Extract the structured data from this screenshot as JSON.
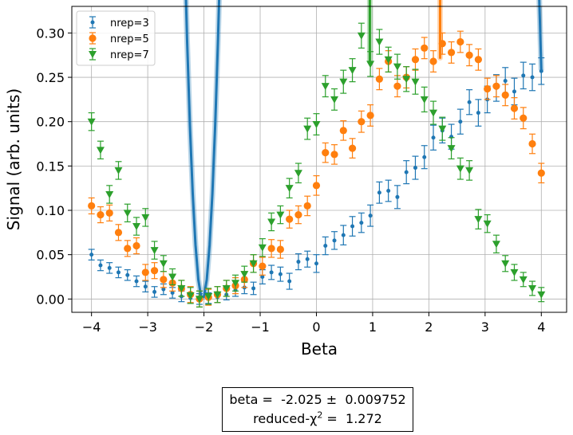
{
  "chart_data": {
    "type": "scatter",
    "xlabel": "Beta",
    "ylabel": "Signal (arb. units)",
    "xlim": [
      -4.35,
      4.45
    ],
    "ylim": [
      -0.015,
      0.33
    ],
    "xticks": [
      -4,
      -3,
      -2,
      -1,
      0,
      1,
      2,
      3,
      4
    ],
    "xtick_labels": [
      "−4",
      "−3",
      "−2",
      "−1",
      "0",
      "1",
      "2",
      "3",
      "4"
    ],
    "yticks": [
      0.0,
      0.05,
      0.1,
      0.15,
      0.2,
      0.25,
      0.3
    ],
    "ytick_labels": [
      "0.00",
      "0.05",
      "0.10",
      "0.15",
      "0.20",
      "0.25",
      "0.30"
    ],
    "grid": true,
    "legend_position": "top-left",
    "fit": {
      "beta": -2.025,
      "beta_err": 0.009752,
      "reduced_chi2": 1.272,
      "line1_prefix": "beta =  ",
      "line1_value": "-2.025",
      "line1_pm": " ±  ",
      "line1_err": "0.009752",
      "line2_prefix": "reduced-χ",
      "line2_sup": "2",
      "line2_suffix": " =  ",
      "line2_value": "1.272"
    },
    "series": [
      {
        "name": "nrep=3",
        "color": "#1f77b4",
        "marker": "dot",
        "x": [
          -4.0,
          -3.84,
          -3.68,
          -3.52,
          -3.36,
          -3.2,
          -3.04,
          -2.88,
          -2.72,
          -2.56,
          -2.4,
          -2.24,
          -2.08,
          -1.92,
          -1.76,
          -1.6,
          -1.44,
          -1.28,
          -1.12,
          -0.96,
          -0.8,
          -0.64,
          -0.48,
          -0.32,
          -0.16,
          0.0,
          0.16,
          0.32,
          0.48,
          0.64,
          0.8,
          0.96,
          1.12,
          1.28,
          1.44,
          1.6,
          1.76,
          1.92,
          2.08,
          2.24,
          2.4,
          2.56,
          2.72,
          2.88,
          3.04,
          3.2,
          3.36,
          3.52,
          3.68,
          3.84,
          4.0
        ],
        "y": [
          0.05,
          0.038,
          0.035,
          0.03,
          0.027,
          0.02,
          0.014,
          0.008,
          0.011,
          0.007,
          0.003,
          0.001,
          0.0,
          0.001,
          0.002,
          0.005,
          0.01,
          0.013,
          0.012,
          0.025,
          0.03,
          0.028,
          0.02,
          0.042,
          0.045,
          0.04,
          0.06,
          0.066,
          0.072,
          0.082,
          0.086,
          0.094,
          0.12,
          0.122,
          0.115,
          0.143,
          0.148,
          0.16,
          0.182,
          0.19,
          0.183,
          0.2,
          0.222,
          0.21,
          0.225,
          0.238,
          0.246,
          0.234,
          0.252,
          0.25,
          0.257
        ],
        "err": [
          0.006,
          0.006,
          0.006,
          0.006,
          0.006,
          0.006,
          0.006,
          0.006,
          0.006,
          0.006,
          0.006,
          0.006,
          0.006,
          0.006,
          0.006,
          0.006,
          0.007,
          0.007,
          0.007,
          0.008,
          0.008,
          0.008,
          0.009,
          0.009,
          0.009,
          0.01,
          0.01,
          0.01,
          0.011,
          0.011,
          0.011,
          0.012,
          0.012,
          0.012,
          0.013,
          0.013,
          0.013,
          0.013,
          0.014,
          0.014,
          0.014,
          0.014,
          0.014,
          0.015,
          0.015,
          0.015,
          0.015,
          0.015,
          0.015,
          0.015,
          0.015
        ],
        "fit_curve": {
          "peak": 0.258,
          "center": 4.0,
          "omega": 0.5
        }
      },
      {
        "name": "nrep=5",
        "color": "#ff7f0e",
        "marker": "circle",
        "x": [
          -4.0,
          -3.84,
          -3.68,
          -3.52,
          -3.36,
          -3.2,
          -3.04,
          -2.88,
          -2.72,
          -2.56,
          -2.4,
          -2.24,
          -2.08,
          -1.92,
          -1.76,
          -1.6,
          -1.44,
          -1.28,
          -1.12,
          -0.96,
          -0.8,
          -0.64,
          -0.48,
          -0.32,
          -0.16,
          0.0,
          0.16,
          0.32,
          0.48,
          0.64,
          0.8,
          0.96,
          1.12,
          1.28,
          1.44,
          1.6,
          1.76,
          1.92,
          2.08,
          2.24,
          2.4,
          2.56,
          2.72,
          2.88,
          3.04,
          3.2,
          3.36,
          3.52,
          3.68,
          3.84,
          4.0
        ],
        "y": [
          0.105,
          0.095,
          0.097,
          0.075,
          0.057,
          0.06,
          0.03,
          0.032,
          0.022,
          0.018,
          0.012,
          0.005,
          0.0,
          0.002,
          0.005,
          0.012,
          0.015,
          0.022,
          0.04,
          0.037,
          0.057,
          0.056,
          0.09,
          0.095,
          0.105,
          0.128,
          0.165,
          0.163,
          0.19,
          0.17,
          0.2,
          0.207,
          0.248,
          0.268,
          0.24,
          0.25,
          0.27,
          0.283,
          0.268,
          0.288,
          0.278,
          0.29,
          0.275,
          0.27,
          0.237,
          0.24,
          0.23,
          0.215,
          0.204,
          0.175,
          0.142
        ],
        "err": [
          0.009,
          0.009,
          0.009,
          0.009,
          0.009,
          0.009,
          0.009,
          0.009,
          0.009,
          0.009,
          0.009,
          0.009,
          0.009,
          0.009,
          0.009,
          0.009,
          0.009,
          0.009,
          0.01,
          0.01,
          0.01,
          0.01,
          0.01,
          0.01,
          0.011,
          0.011,
          0.011,
          0.011,
          0.011,
          0.011,
          0.012,
          0.012,
          0.012,
          0.012,
          0.012,
          0.012,
          0.012,
          0.012,
          0.012,
          0.012,
          0.012,
          0.012,
          0.012,
          0.012,
          0.012,
          0.012,
          0.012,
          0.012,
          0.012,
          0.011,
          0.011
        ],
        "fit_curve": {
          "peak": 0.272,
          "center": 2.2,
          "omega": 0.745
        }
      },
      {
        "name": "nrep=7",
        "color": "#2ca02c",
        "marker": "triangle-down",
        "x": [
          -4.0,
          -3.84,
          -3.68,
          -3.52,
          -3.36,
          -3.2,
          -3.04,
          -2.88,
          -2.72,
          -2.56,
          -2.4,
          -2.24,
          -2.08,
          -1.92,
          -1.76,
          -1.6,
          -1.44,
          -1.28,
          -1.12,
          -0.96,
          -0.8,
          -0.64,
          -0.48,
          -0.32,
          -0.16,
          0.0,
          0.16,
          0.32,
          0.48,
          0.64,
          0.8,
          0.96,
          1.12,
          1.28,
          1.44,
          1.6,
          1.76,
          1.92,
          2.08,
          2.24,
          2.4,
          2.56,
          2.72,
          2.88,
          3.04,
          3.2,
          3.36,
          3.52,
          3.68,
          3.84,
          4.0
        ],
        "y": [
          0.2,
          0.168,
          0.118,
          0.145,
          0.097,
          0.082,
          0.092,
          0.055,
          0.04,
          0.025,
          0.012,
          0.004,
          0.0,
          0.003,
          0.005,
          0.012,
          0.018,
          0.028,
          0.04,
          0.058,
          0.087,
          0.095,
          0.125,
          0.142,
          0.192,
          0.197,
          0.24,
          0.225,
          0.245,
          0.258,
          0.297,
          0.265,
          0.29,
          0.27,
          0.262,
          0.248,
          0.245,
          0.225,
          0.21,
          0.192,
          0.17,
          0.147,
          0.145,
          0.09,
          0.085,
          0.062,
          0.04,
          0.03,
          0.022,
          0.012,
          0.005
        ],
        "err": [
          0.01,
          0.01,
          0.01,
          0.01,
          0.01,
          0.01,
          0.01,
          0.01,
          0.009,
          0.009,
          0.009,
          0.009,
          0.009,
          0.009,
          0.009,
          0.009,
          0.009,
          0.009,
          0.01,
          0.01,
          0.01,
          0.01,
          0.011,
          0.011,
          0.012,
          0.012,
          0.012,
          0.012,
          0.013,
          0.013,
          0.014,
          0.014,
          0.014,
          0.014,
          0.014,
          0.014,
          0.014,
          0.014,
          0.013,
          0.013,
          0.012,
          0.012,
          0.011,
          0.011,
          0.01,
          0.01,
          0.009,
          0.009,
          0.008,
          0.008,
          0.008
        ],
        "fit_curve": {
          "peak": 0.268,
          "center": 0.95,
          "omega": 1.055
        }
      }
    ]
  }
}
